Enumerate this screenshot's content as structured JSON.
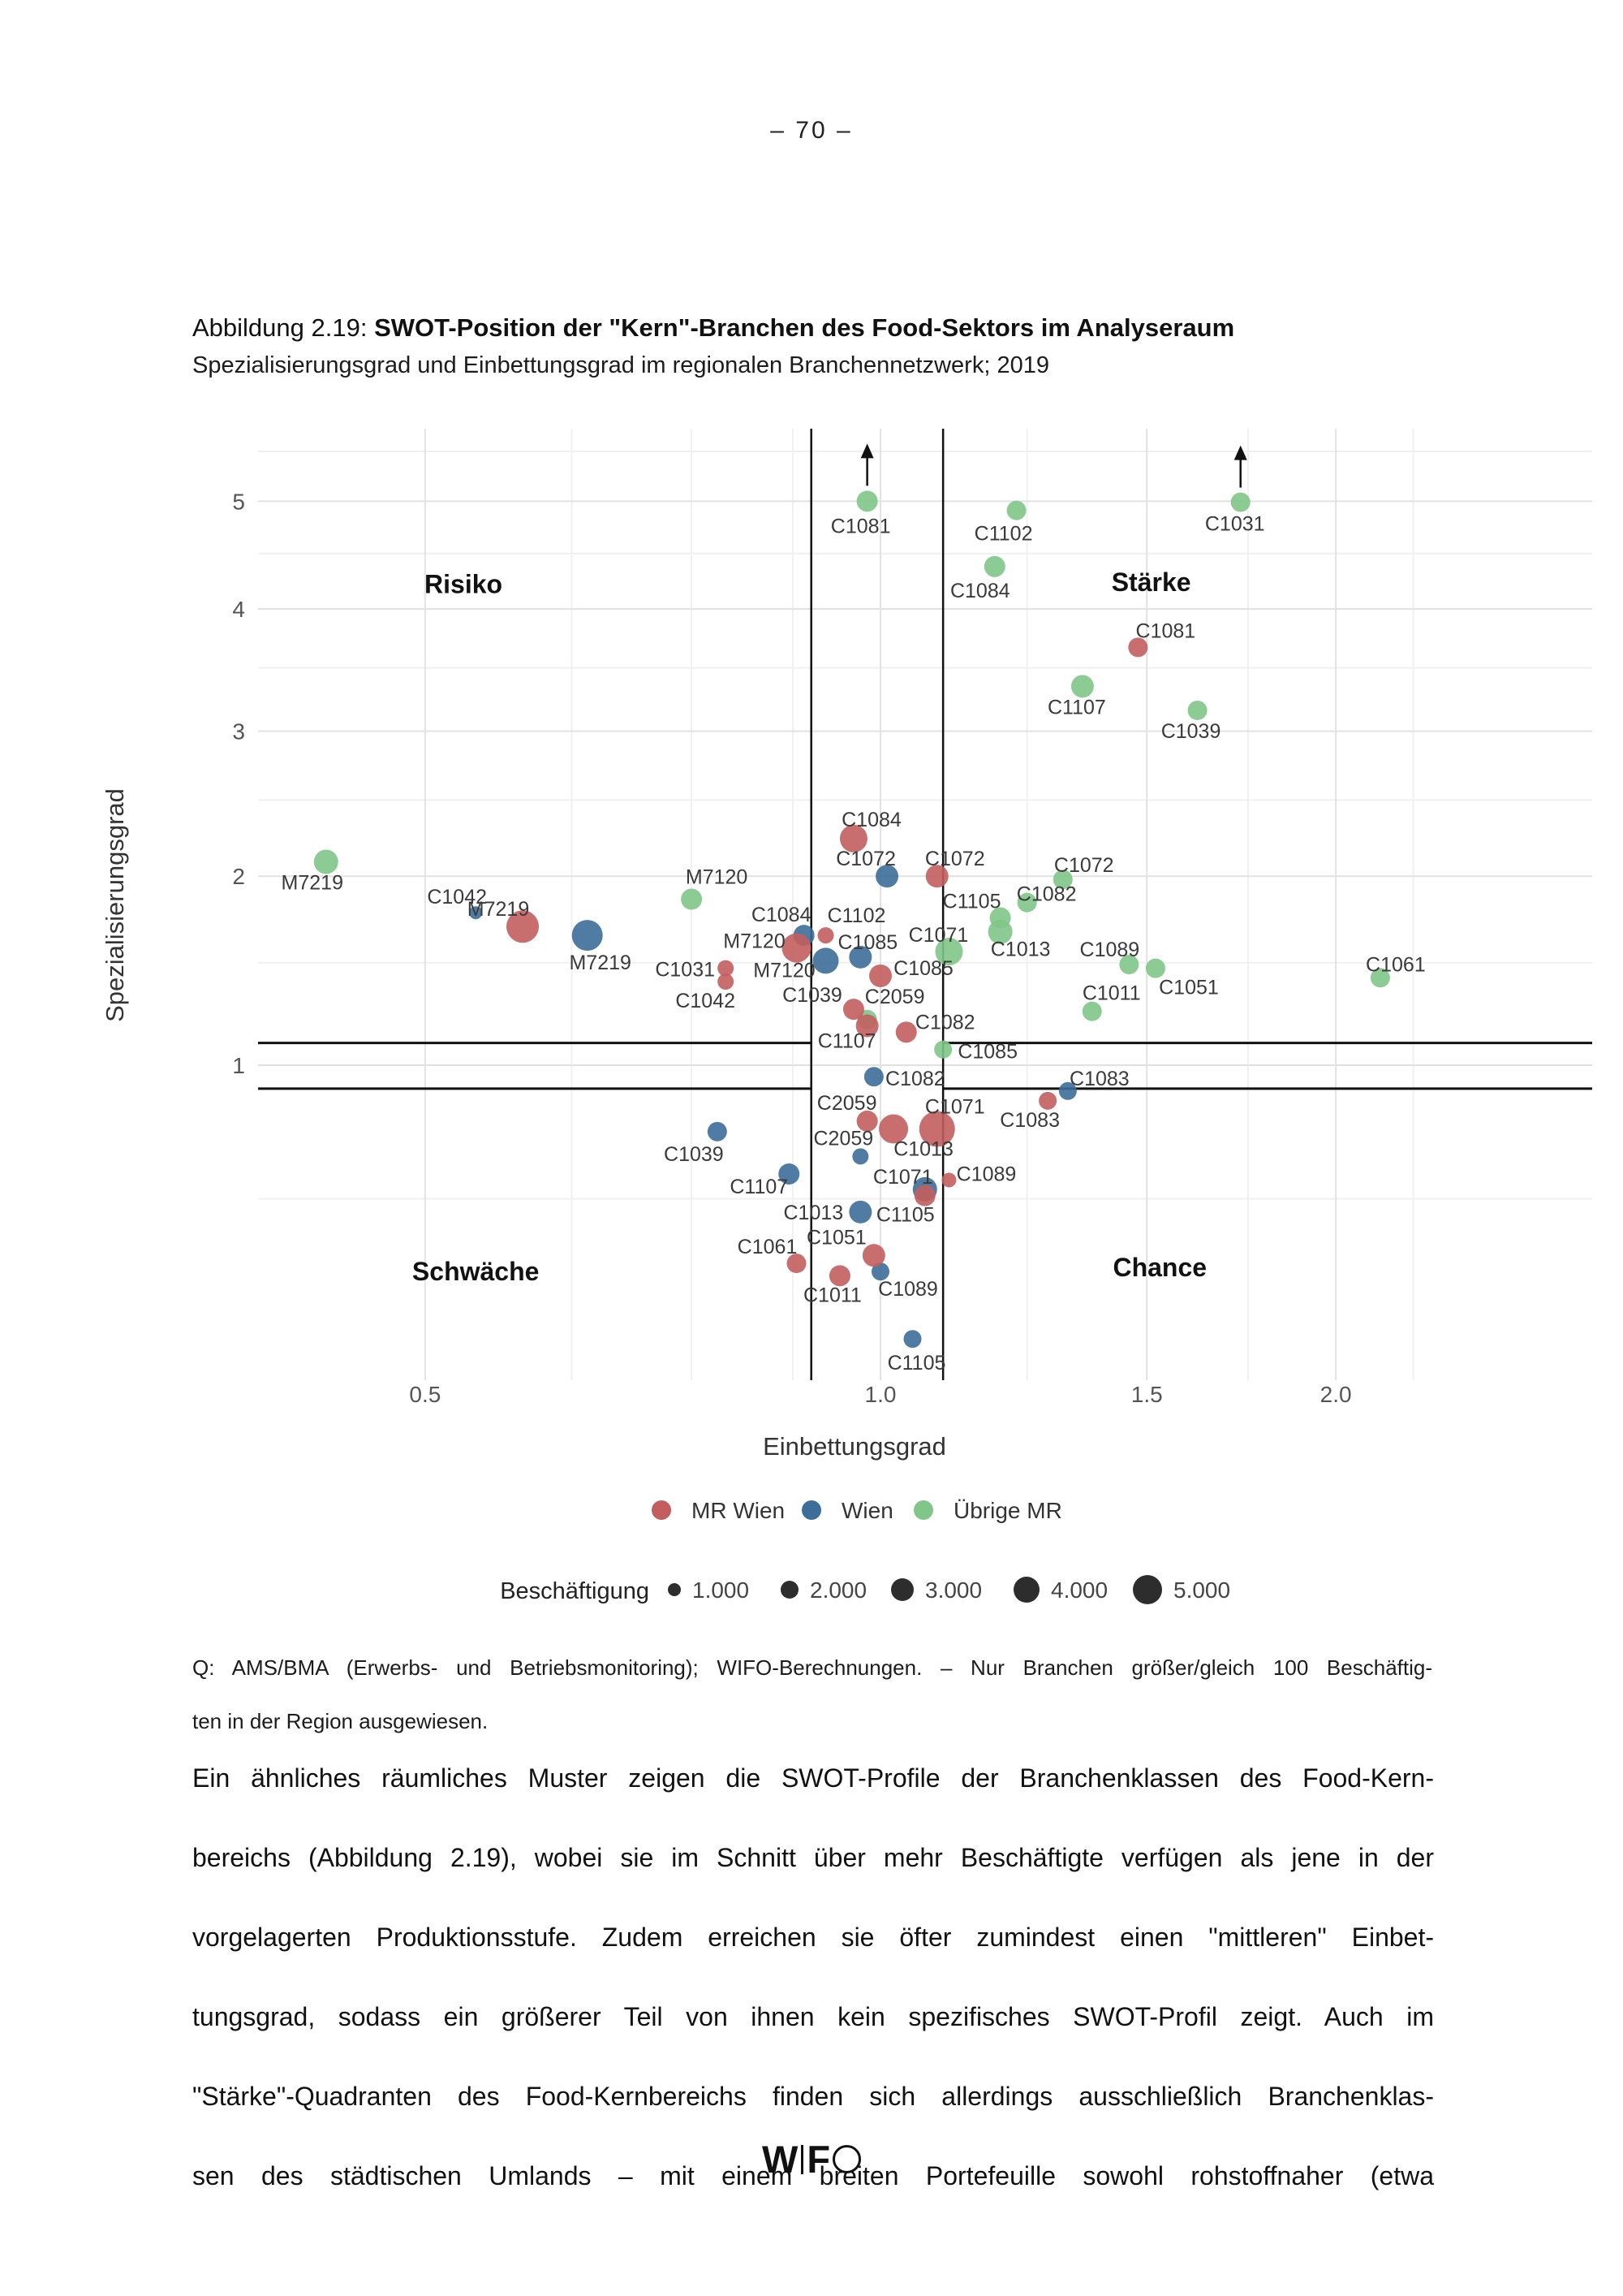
{
  "page": {
    "number": "–  70  –"
  },
  "figure": {
    "caption_label": "Abbildung 2.19: ",
    "caption_title": "SWOT-Position der \"Kern\"-Branchen des Food-Sektors im Analyseraum",
    "subtitle": "Spezialisierungsgrad und Einbettungsgrad im regionalen Branchennetzwerk; 2019"
  },
  "chart_data": {
    "type": "scatter",
    "xlabel": "Einbettungsgrad",
    "ylabel": "Spezialisierungsgrad",
    "x_scale": "log10",
    "y_scale": "sqrt",
    "xlim": [
      0.39,
      2.95
    ],
    "ylim": [
      0.1,
      5.8
    ],
    "x_ticks": [
      "0.5",
      "1.0",
      "1.5",
      "2.0"
    ],
    "x_minor_ticks": [
      0.625,
      0.75,
      0.875,
      1.25,
      1.75,
      2.25
    ],
    "y_ticks": [
      1,
      2,
      3,
      4,
      5
    ],
    "y_minor_ticks": [
      0.5,
      1.5,
      2.5,
      3.5,
      4.5,
      5.5
    ],
    "band": {
      "x": [
        0.9,
        1.1
      ],
      "y": [
        0.9,
        1.1
      ]
    },
    "quadrants": [
      {
        "label": "Risiko",
        "x": 0.53,
        "y": 4.22
      },
      {
        "label": "Stärke",
        "x": 1.51,
        "y": 4.24
      },
      {
        "label": "Schwäche",
        "x": 0.54,
        "y": 0.3
      },
      {
        "label": "Chance",
        "x": 1.53,
        "y": 0.31
      }
    ],
    "legend_colors": {
      "mr_wien": "#c25e5e",
      "wien": "#3d6d99",
      "uebrige_mr": "#7fc688"
    },
    "series": [
      {
        "name": "Übrige MR",
        "color": "#7fc688",
        "points": [
          {
            "c": "M7219",
            "x": 0.43,
            "y": 2.09,
            "r": 15,
            "dx": -17,
            "dy": 25
          },
          {
            "c": "M7120",
            "x": 0.75,
            "y": 1.86,
            "r": 13,
            "dx": 31,
            "dy": -28
          },
          {
            "c": "C1081",
            "x": 0.98,
            "y": 5.0,
            "r": 13,
            "dx": -8,
            "dy": 30,
            "arrow": true
          },
          {
            "c": "C1102",
            "x": 1.23,
            "y": 4.91,
            "r": 12,
            "dx": -16,
            "dy": 28
          },
          {
            "c": "C1084",
            "x": 1.19,
            "y": 4.38,
            "r": 13,
            "dx": -18,
            "dy": 29
          },
          {
            "c": "C1031",
            "x": 1.73,
            "y": 4.99,
            "r": 12,
            "dx": -7,
            "dy": 26,
            "arrow": true
          },
          {
            "c": "C1107",
            "x": 1.36,
            "y": 3.35,
            "r": 14,
            "dx": -7,
            "dy": 25
          },
          {
            "c": "C1039",
            "x": 1.62,
            "y": 3.16,
            "r": 12,
            "dx": -8,
            "dy": 25
          },
          {
            "c": "C1072",
            "x": 1.32,
            "y": 1.98,
            "r": 12,
            "dx": 26,
            "dy": -18
          },
          {
            "c": "C1082",
            "x": 1.25,
            "y": 1.84,
            "r": 12,
            "dx": 24,
            "dy": -11
          },
          {
            "c": "C1105",
            "x": 1.2,
            "y": 1.75,
            "r": 13,
            "dx": -35,
            "dy": -21
          },
          {
            "c": "C1013",
            "x": 1.2,
            "y": 1.67,
            "r": 15,
            "dx": 25,
            "dy": 21
          },
          {
            "c": "C1071",
            "x": 1.11,
            "y": 1.56,
            "r": 17,
            "dx": -13,
            "dy": -21
          },
          {
            "c": "C2059",
            "x": 0.98,
            "y": 1.21,
            "r": 12,
            "dx": 34,
            "dy": -29
          },
          {
            "c": "C1085",
            "x": 1.1,
            "y": 1.07,
            "r": 11,
            "dx": 55,
            "dy": 2
          },
          {
            "c": "C1089",
            "x": 1.46,
            "y": 1.49,
            "r": 12,
            "dx": -24,
            "dy": -19
          },
          {
            "c": "C1051",
            "x": 1.52,
            "y": 1.47,
            "r": 12,
            "dx": 41,
            "dy": 23
          },
          {
            "c": "C1011",
            "x": 1.38,
            "y": 1.25,
            "r": 12,
            "dx": 24,
            "dy": -23
          },
          {
            "c": "C1061",
            "x": 2.14,
            "y": 1.42,
            "r": 12,
            "dx": 19,
            "dy": -17
          }
        ]
      },
      {
        "name": "Wien",
        "color": "#3d6d99",
        "points": [
          {
            "c": "C1042",
            "x": 0.54,
            "y": 1.78,
            "r": 8,
            "dx": -23,
            "dy": -20
          },
          {
            "c": "M7219",
            "x": 0.64,
            "y": 1.65,
            "r": 19,
            "dx": 16,
            "dy": 33
          },
          {
            "c": "C1084",
            "x": 0.89,
            "y": 1.65,
            "r": 13,
            "dx": -28,
            "dy": -26
          },
          {
            "c": "M7120",
            "x": 0.92,
            "y": 1.51,
            "r": 16,
            "dx": -51,
            "dy": 11
          },
          {
            "c": "C1085",
            "x": 0.97,
            "y": 1.53,
            "r": 14,
            "dx": 9,
            "dy": -19
          },
          {
            "c": "C1072",
            "x": 1.01,
            "y": 2.0,
            "r": 14,
            "dx": -26,
            "dy": -22
          },
          {
            "c": "C1082",
            "x": 0.99,
            "y": 0.95,
            "r": 12,
            "dx": 51,
            "dy": 2
          },
          {
            "c": "C1083",
            "x": 1.33,
            "y": 0.89,
            "r": 11,
            "dx": 39,
            "dy": -16
          },
          {
            "c": "C2059",
            "x": 0.97,
            "y": 0.64,
            "r": 10,
            "dx": -21,
            "dy": -23
          },
          {
            "c": "C1039",
            "x": 0.78,
            "y": 0.73,
            "r": 12,
            "dx": -29,
            "dy": 27
          },
          {
            "c": "C1107",
            "x": 0.87,
            "y": 0.58,
            "r": 13,
            "dx": -37,
            "dy": 15
          },
          {
            "c": "C1071",
            "x": 1.07,
            "y": 0.53,
            "r": 15,
            "dx": -27,
            "dy": -16
          },
          {
            "c": "C1013",
            "x": 0.97,
            "y": 0.46,
            "r": 14,
            "dx": -58,
            "dy": 0
          },
          {
            "c": "C1089",
            "x": 1.0,
            "y": 0.3,
            "r": 11,
            "dx": 34,
            "dy": 21
          },
          {
            "c": "C1105",
            "x": 1.05,
            "y": 0.16,
            "r": 11,
            "dx": 5,
            "dy": 29
          }
        ]
      },
      {
        "name": "MR Wien",
        "color": "#c25e5e",
        "points": [
          {
            "c": "M7219",
            "x": 0.58,
            "y": 1.7,
            "r": 20,
            "dx": -30,
            "dy": -22
          },
          {
            "c": "C1031",
            "x": 0.79,
            "y": 1.47,
            "r": 10,
            "dx": -50,
            "dy": 1
          },
          {
            "c": "C1042",
            "x": 0.79,
            "y": 1.4,
            "r": 10,
            "dx": -25,
            "dy": 23
          },
          {
            "c": "M7120",
            "x": 0.88,
            "y": 1.58,
            "r": 18,
            "dx": -52,
            "dy": -9
          },
          {
            "c": "C1102",
            "x": 0.92,
            "y": 1.65,
            "r": 10,
            "dx": 38,
            "dy": -25
          },
          {
            "c": "C1084",
            "x": 0.96,
            "y": 2.24,
            "r": 17,
            "dx": 22,
            "dy": -24
          },
          {
            "c": "C1072",
            "x": 1.09,
            "y": 2.0,
            "r": 14,
            "dx": 22,
            "dy": -22
          },
          {
            "c": "C1085",
            "x": 1.0,
            "y": 1.43,
            "r": 14,
            "dx": 53,
            "dy": -10
          },
          {
            "c": "C1039",
            "x": 0.96,
            "y": 1.26,
            "r": 13,
            "dx": -51,
            "dy": -18
          },
          {
            "c": "C1107",
            "x": 0.98,
            "y": 1.18,
            "r": 14,
            "dx": -25,
            "dy": 18
          },
          {
            "c": "C1082",
            "x": 1.04,
            "y": 1.15,
            "r": 13,
            "dx": 48,
            "dy": -13
          },
          {
            "c": "C1081",
            "x": 1.48,
            "y": 3.67,
            "r": 12,
            "dx": 34,
            "dy": -21
          },
          {
            "c": "C2059",
            "x": 0.98,
            "y": 0.77,
            "r": 13,
            "dx": -25,
            "dy": -23
          },
          {
            "c": "C1013",
            "x": 1.02,
            "y": 0.74,
            "r": 18,
            "dx": 37,
            "dy": 24
          },
          {
            "c": "C1071",
            "x": 1.09,
            "y": 0.74,
            "r": 22,
            "dx": 22,
            "dy": -28
          },
          {
            "c": "C1083",
            "x": 1.29,
            "y": 0.85,
            "r": 11,
            "dx": -22,
            "dy": 23
          },
          {
            "c": "C1105",
            "x": 1.07,
            "y": 0.51,
            "r": 13,
            "dx": -24,
            "dy": 23
          },
          {
            "c": "C1089",
            "x": 1.11,
            "y": 0.56,
            "r": 9,
            "dx": 46,
            "dy": -8
          },
          {
            "c": "C1051",
            "x": 0.99,
            "y": 0.34,
            "r": 14,
            "dx": -46,
            "dy": -23
          },
          {
            "c": "C1061",
            "x": 0.88,
            "y": 0.32,
            "r": 12,
            "dx": -36,
            "dy": -21
          },
          {
            "c": "C1011",
            "x": 0.94,
            "y": 0.29,
            "r": 13,
            "dx": -9,
            "dy": 23
          }
        ]
      }
    ],
    "legend": {
      "order": [
        "MR Wien",
        "Wien",
        "Übrige MR"
      ]
    },
    "size_legend": {
      "label": "Beschäftigung",
      "items": [
        {
          "label": "1.000",
          "r": 8
        },
        {
          "label": "2.000",
          "r": 11
        },
        {
          "label": "3.000",
          "r": 14
        },
        {
          "label": "4.000",
          "r": 16
        },
        {
          "label": "5.000",
          "r": 18
        }
      ]
    }
  },
  "note": {
    "line1": "Q: AMS/BMA (Erwerbs- und Betriebsmonitoring); WIFO-Berechnungen. – Nur Branchen größer/gleich 100 Beschäftig-",
    "line2": "ten in der Region ausgewiesen."
  },
  "paragraph": {
    "lines": [
      "Ein ähnliches räumliches Muster zeigen die SWOT-Profile der Branchenklassen des Food-Kern-",
      "bereichs (Abbildung 2.19), wobei sie im Schnitt über mehr Beschäftigte verfügen als jene in der",
      "vorgelagerten Produktionsstufe. Zudem erreichen sie öfter zumindest einen \"mittleren\" Einbet-",
      "tungsgrad, sodass ein größerer Teil von ihnen kein spezifisches SWOT-Profil zeigt. Auch im",
      "\"Stärke\"-Quadranten des Food-Kernbereichs finden sich allerdings ausschließlich Branchenklas-",
      "sen des städtischen Umlands – mit einem breiten Portefeuille sowohl rohstoffnaher (etwa"
    ]
  },
  "footer": {
    "w": "W",
    "f": "F"
  }
}
